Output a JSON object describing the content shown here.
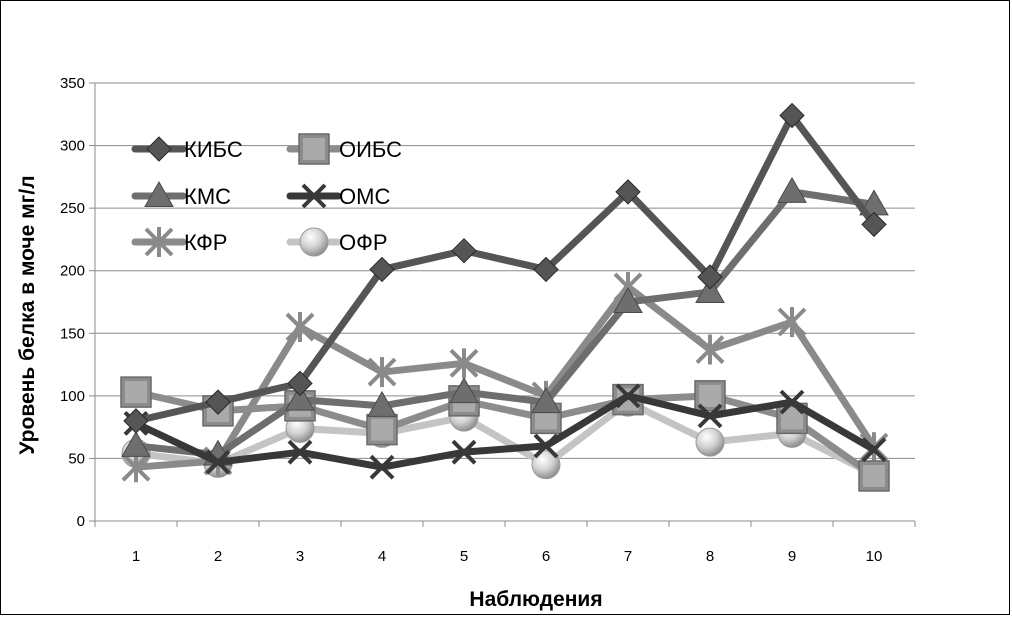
{
  "chart_data": {
    "type": "line",
    "title": "",
    "xlabel": "Наблюдения",
    "ylabel": "Уровень белка в моче мг/л",
    "categories": [
      "1",
      "2",
      "3",
      "4",
      "5",
      "6",
      "7",
      "8",
      "9",
      "10"
    ],
    "ylim": [
      0,
      350
    ],
    "yticks": [
      0,
      50,
      100,
      150,
      200,
      250,
      300,
      350
    ],
    "grid": "horizontal",
    "legend_position": "top-left",
    "series": [
      {
        "name": "КИБС",
        "marker": "diamond",
        "color": "#555555",
        "values": [
          80,
          95,
          110,
          201,
          216,
          201,
          263,
          195,
          324,
          237
        ]
      },
      {
        "name": "ОИБС",
        "marker": "square",
        "color": "#8c8c8c",
        "values": [
          103,
          88,
          92,
          73,
          96,
          82,
          97,
          100,
          82,
          36
        ]
      },
      {
        "name": "КМС",
        "marker": "triangle",
        "color": "#6e6e6e",
        "values": [
          60,
          53,
          97,
          92,
          103,
          95,
          175,
          183,
          263,
          253
        ]
      },
      {
        "name": "ОМС",
        "marker": "x",
        "color": "#383838",
        "values": [
          78,
          47,
          55,
          43,
          55,
          60,
          100,
          84,
          95,
          57
        ]
      },
      {
        "name": "КФР",
        "marker": "star",
        "color": "#8a8a8a",
        "values": [
          43,
          48,
          155,
          119,
          126,
          100,
          187,
          137,
          159,
          59
        ]
      },
      {
        "name": "ОФР",
        "marker": "circle",
        "color": "#c4c4c4",
        "values": [
          54,
          46,
          74,
          70,
          83,
          45,
          95,
          63,
          70,
          37
        ]
      }
    ]
  }
}
